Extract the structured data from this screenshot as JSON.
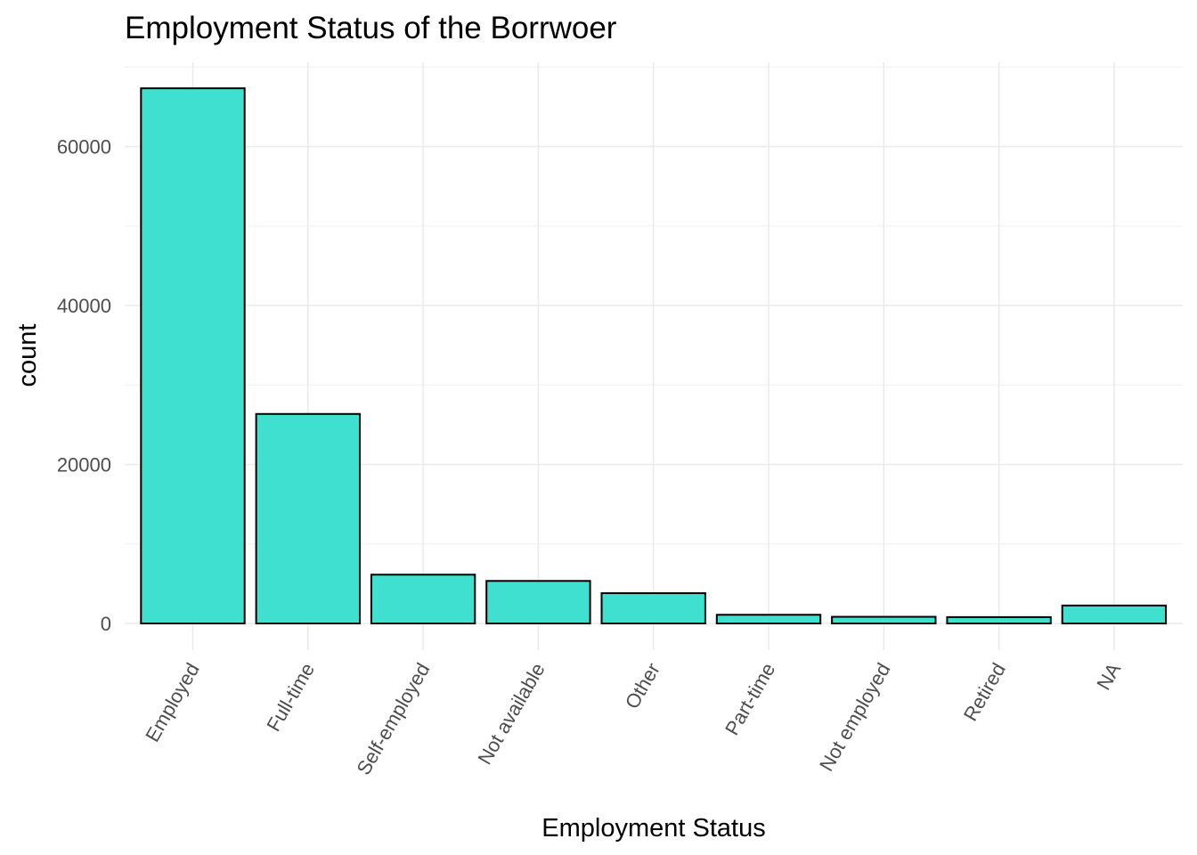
{
  "chart_data": {
    "type": "bar",
    "title": "Employment Status of the Borrwoer",
    "xlabel": "Employment Status",
    "ylabel": "count",
    "categories": [
      "Employed",
      "Full-time",
      "Self-employed",
      "Not available",
      "Other",
      "Part-time",
      "Not employed",
      "Retired",
      "NA"
    ],
    "values": [
      67322,
      26355,
      6134,
      5347,
      3806,
      1088,
      835,
      795,
      2255
    ],
    "ylim": [
      0,
      70000
    ],
    "y_ticks": [
      0,
      20000,
      40000,
      60000
    ],
    "y_tick_labels": [
      "0",
      "20000",
      "40000",
      "60000"
    ],
    "grid": true,
    "bar_fill": "#40E0D0",
    "bar_outline": "#000000",
    "legend": "none"
  }
}
